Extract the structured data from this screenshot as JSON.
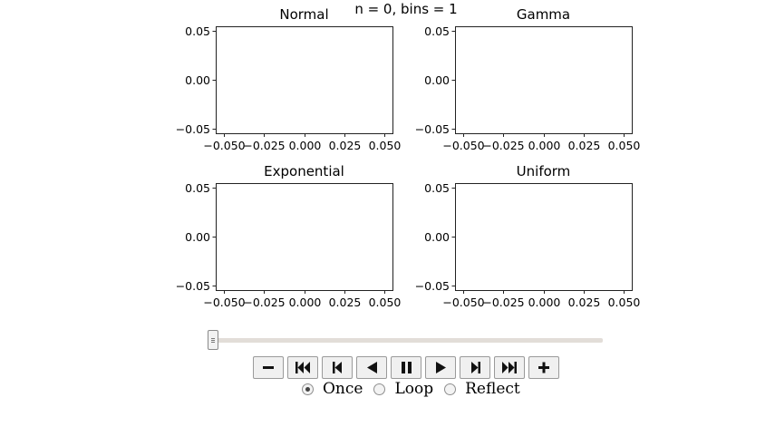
{
  "chart_data": {
    "suptitle": "n = 0, bins = 1",
    "panels": [
      {
        "type": "histogram",
        "title": "Normal",
        "values": [],
        "xlim": [
          -0.055,
          0.055
        ],
        "ylim": [
          -0.055,
          0.055
        ],
        "xticks": [
          -0.05,
          -0.025,
          0.0,
          0.025,
          0.05
        ],
        "xtick_labels": [
          "−0.050",
          "−0.025",
          "0.000",
          "0.025",
          "0.050"
        ],
        "yticks": [
          0.05,
          0.0,
          -0.05
        ],
        "ytick_labels": [
          "0.05",
          "0.00",
          "−0.05"
        ]
      },
      {
        "type": "histogram",
        "title": "Gamma",
        "values": [],
        "xlim": [
          -0.055,
          0.055
        ],
        "ylim": [
          -0.055,
          0.055
        ],
        "xticks": [
          -0.05,
          -0.025,
          0.0,
          0.025,
          0.05
        ],
        "xtick_labels": [
          "−0.050",
          "−0.025",
          "0.000",
          "0.025",
          "0.050"
        ],
        "yticks": [
          0.05,
          0.0,
          -0.05
        ],
        "ytick_labels": [
          "0.05",
          "0.00",
          "−0.05"
        ]
      },
      {
        "type": "histogram",
        "title": "Exponential",
        "values": [],
        "xlim": [
          -0.055,
          0.055
        ],
        "ylim": [
          -0.055,
          0.055
        ],
        "xticks": [
          -0.05,
          -0.025,
          0.0,
          0.025,
          0.05
        ],
        "xtick_labels": [
          "−0.050",
          "−0.025",
          "0.000",
          "0.025",
          "0.050"
        ],
        "yticks": [
          0.05,
          0.0,
          -0.05
        ],
        "ytick_labels": [
          "0.05",
          "0.00",
          "−0.05"
        ]
      },
      {
        "type": "histogram",
        "title": "Uniform",
        "values": [],
        "xlim": [
          -0.055,
          0.055
        ],
        "ylim": [
          -0.055,
          0.055
        ],
        "xticks": [
          -0.05,
          -0.025,
          0.0,
          0.025,
          0.05
        ],
        "xtick_labels": [
          "−0.050",
          "−0.025",
          "0.000",
          "0.025",
          "0.050"
        ],
        "yticks": [
          0.05,
          0.0,
          -0.05
        ],
        "ytick_labels": [
          "0.05",
          "0.00",
          "−0.05"
        ]
      }
    ]
  },
  "animation": {
    "frame_fraction": 0,
    "buttons": [
      {
        "name": "decrease-speed-button",
        "icon": "minus-icon"
      },
      {
        "name": "first-frame-button",
        "icon": "fast-backward-icon"
      },
      {
        "name": "step-back-button",
        "icon": "step-backward-icon"
      },
      {
        "name": "play-reverse-button",
        "icon": "play-backward-icon"
      },
      {
        "name": "pause-button",
        "icon": "pause-icon"
      },
      {
        "name": "play-button",
        "icon": "play-forward-icon"
      },
      {
        "name": "step-forward-button",
        "icon": "step-forward-icon"
      },
      {
        "name": "last-frame-button",
        "icon": "fast-forward-icon"
      },
      {
        "name": "increase-speed-button",
        "icon": "plus-icon"
      }
    ],
    "modes": [
      {
        "label": "Once",
        "selected": true
      },
      {
        "label": "Loop",
        "selected": false
      },
      {
        "label": "Reflect",
        "selected": false
      }
    ]
  }
}
